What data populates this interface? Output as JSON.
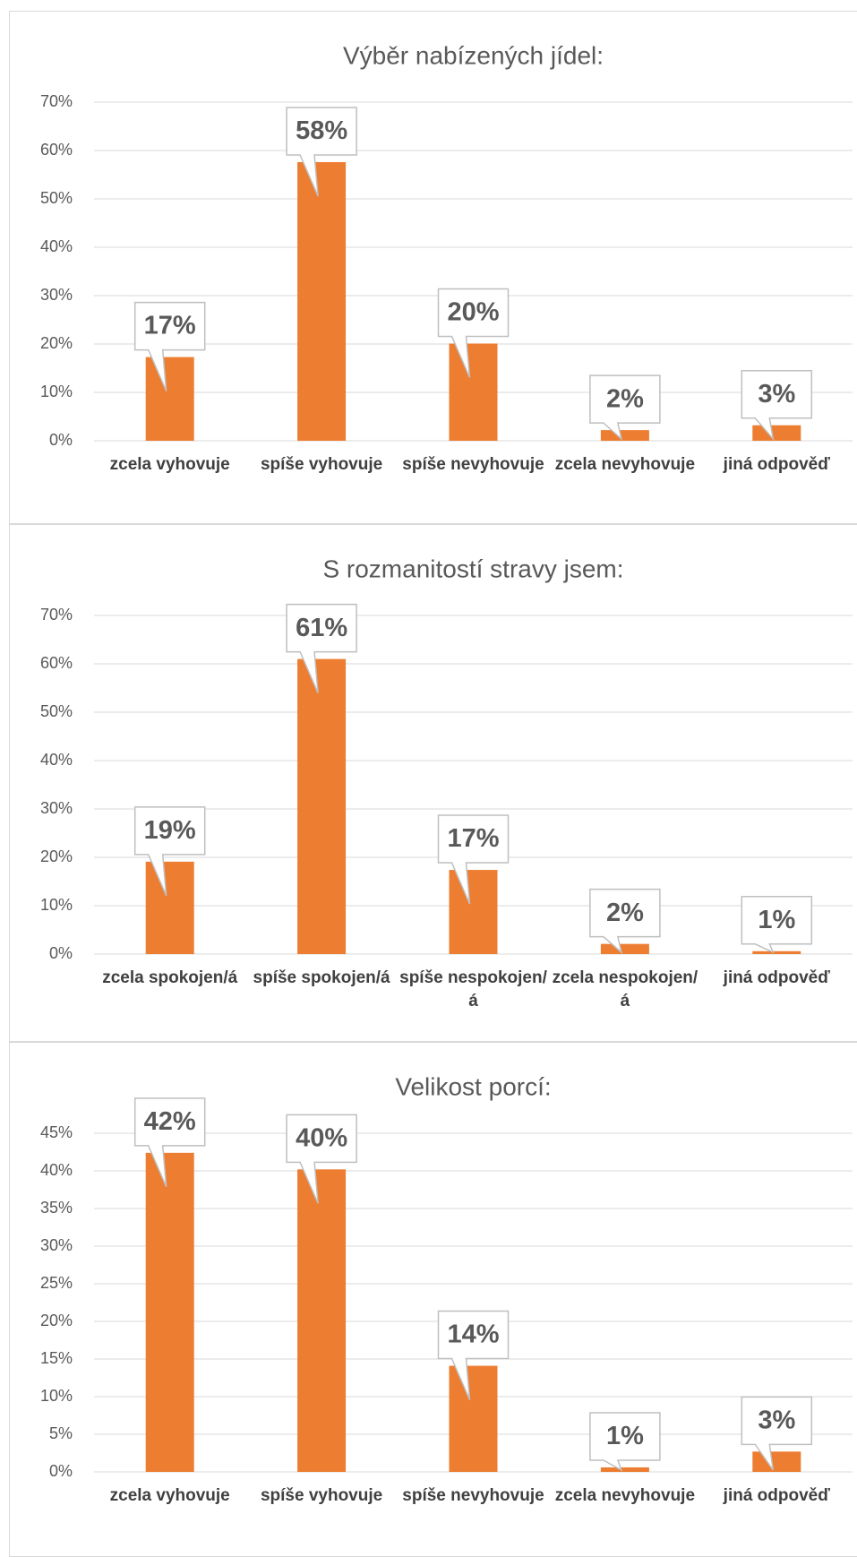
{
  "chart_data": [
    {
      "type": "bar",
      "title": "Výběr nabízených jídel:",
      "categories": [
        "zcela vyhovuje",
        "spíše vyhovuje",
        "spíše nevyhovuje",
        "zcela nevyhovuje",
        "jiná odpověď"
      ],
      "values": [
        17.3,
        57.6,
        20.1,
        2.2,
        3.2
      ],
      "value_labels": [
        "17%",
        "58%",
        "20%",
        "2%",
        "3%"
      ],
      "color": "#ed7d31",
      "ylim": [
        0,
        70
      ],
      "yticks": [
        {
          "value": 0,
          "label": "0%"
        },
        {
          "value": 10,
          "label": "10%"
        },
        {
          "value": 20,
          "label": "20%"
        },
        {
          "value": 30,
          "label": "30%"
        },
        {
          "value": 40,
          "label": "40%"
        },
        {
          "value": 50,
          "label": "50%"
        },
        {
          "value": 60,
          "label": "60%"
        },
        {
          "value": 70,
          "label": "70%"
        }
      ],
      "grid": true
    },
    {
      "type": "bar",
      "title": "S rozmanitostí stravy jsem:",
      "categories": [
        "zcela spokojen/á",
        "spíše spokojen/á",
        "spíše nespokojen/á",
        "zcela nespokojen/á",
        "jiná odpověď"
      ],
      "values": [
        19.1,
        61.0,
        17.4,
        2.1,
        0.6
      ],
      "value_labels": [
        "19%",
        "61%",
        "17%",
        "2%",
        "1%"
      ],
      "color": "#ed7d31",
      "ylim": [
        0,
        70
      ],
      "yticks": [
        {
          "value": 0,
          "label": "0%"
        },
        {
          "value": 10,
          "label": "10%"
        },
        {
          "value": 20,
          "label": "20%"
        },
        {
          "value": 30,
          "label": "30%"
        },
        {
          "value": 40,
          "label": "40%"
        },
        {
          "value": 50,
          "label": "50%"
        },
        {
          "value": 60,
          "label": "60%"
        },
        {
          "value": 70,
          "label": "70%"
        }
      ],
      "grid": true
    },
    {
      "type": "bar",
      "title": "Velikost porcí:",
      "categories": [
        "zcela vyhovuje",
        "spíše vyhovuje",
        "spíše nevyhovuje",
        "zcela nevyhovuje",
        "jiná odpověď"
      ],
      "values": [
        42.4,
        40.2,
        14.1,
        0.6,
        2.7
      ],
      "value_labels": [
        "42%",
        "40%",
        "14%",
        "1%",
        "3%"
      ],
      "color": "#ed7d31",
      "ylim": [
        0,
        45
      ],
      "yticks": [
        {
          "value": 0,
          "label": "0%"
        },
        {
          "value": 5,
          "label": "5%"
        },
        {
          "value": 10,
          "label": "10%"
        },
        {
          "value": 15,
          "label": "15%"
        },
        {
          "value": 20,
          "label": "20%"
        },
        {
          "value": 25,
          "label": "25%"
        },
        {
          "value": 30,
          "label": "30%"
        },
        {
          "value": 35,
          "label": "35%"
        },
        {
          "value": 40,
          "label": "40%"
        },
        {
          "value": 45,
          "label": "45%"
        }
      ],
      "grid": true
    }
  ]
}
